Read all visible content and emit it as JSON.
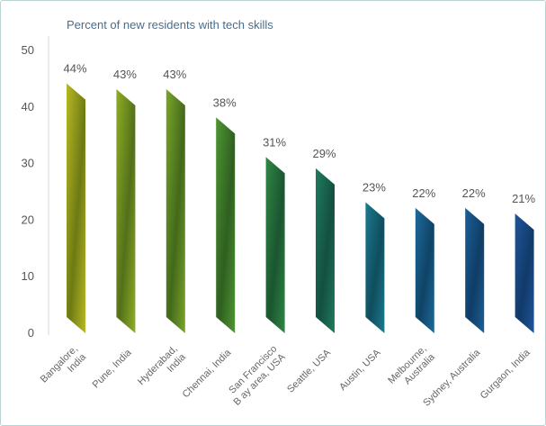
{
  "chart_data": {
    "type": "bar",
    "title": "Percent of new residents with tech skills",
    "xlabel": "",
    "ylabel": "",
    "ylim": [
      0,
      50
    ],
    "yticks": [
      0,
      10,
      20,
      30,
      40,
      50
    ],
    "categories": [
      [
        "Bangalore,",
        "India"
      ],
      [
        "Pune, India"
      ],
      [
        "Hyderabad,",
        "India"
      ],
      [
        "Chennai, India"
      ],
      [
        "San Francisco",
        "B ay area, USA"
      ],
      [
        "Seattle, USA"
      ],
      [
        "Austin, USA"
      ],
      [
        "Melbourne,",
        "Australia"
      ],
      [
        "Sydney, Australia"
      ],
      [
        "Gurgaon, India"
      ]
    ],
    "values": [
      44,
      43,
      43,
      38,
      31,
      29,
      23,
      22,
      22,
      21
    ],
    "data_labels": [
      "44%",
      "43%",
      "43%",
      "38%",
      "31%",
      "29%",
      "23%",
      "22%",
      "22%",
      "21%"
    ],
    "colors": [
      "#b7b923",
      "#8fae24",
      "#7aa52a",
      "#4f9632",
      "#2f8744",
      "#1f7c5f",
      "#1a7c8e",
      "#1d6b9b",
      "#1c5f98",
      "#1f559a"
    ],
    "colors_dark": [
      "#6d7a14",
      "#53701a",
      "#43681b",
      "#2e5f20",
      "#1b5530",
      "#134f40",
      "#0f4d5e",
      "#0f4366",
      "#0f3d66",
      "#113a6a"
    ],
    "grid": false,
    "legend": "none"
  }
}
